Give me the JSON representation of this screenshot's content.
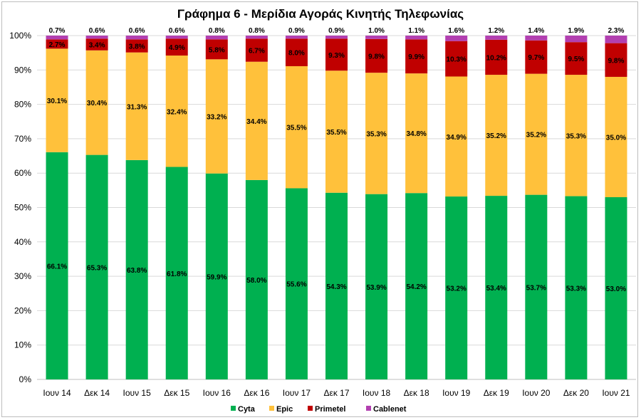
{
  "chart_data": {
    "type": "bar",
    "stacked": true,
    "title": "Γράφημα 6 - Μερίδια Αγοράς Κινητής Τηλεφωνίας",
    "xlabel": "",
    "ylabel": "",
    "ylim": [
      0,
      100
    ],
    "y_ticks": [
      "0%",
      "10%",
      "20%",
      "30%",
      "40%",
      "50%",
      "60%",
      "70%",
      "80%",
      "90%",
      "100%"
    ],
    "categories": [
      "Ιουν 14",
      "Δεκ 14",
      "Ιουν 15",
      "Δεκ 15",
      "Ιουν 16",
      "Δεκ 16",
      "Ιουν 17",
      "Δεκ 17",
      "Ιουν 18",
      "Δεκ 18",
      "Ιουν 19",
      "Δεκ 19",
      "Ιουν 20",
      "Δεκ 20",
      "Ιουν 21"
    ],
    "series": [
      {
        "name": "Cyta",
        "color": "#00b050",
        "values": [
          66.1,
          65.3,
          63.8,
          61.8,
          59.9,
          58.0,
          55.6,
          54.3,
          53.9,
          54.2,
          53.2,
          53.4,
          53.7,
          53.3,
          53.0
        ],
        "labels": [
          "66.1%",
          "65.3%",
          "63.8%",
          "61.8%",
          "59.9%",
          "58.0%",
          "55.6%",
          "54.3%",
          "53.9%",
          "54.2%",
          "53.2%",
          "53.4%",
          "53.7%",
          "53.3%",
          "53.0%"
        ]
      },
      {
        "name": "Epic",
        "color": "#ffc13b",
        "values": [
          30.1,
          30.4,
          31.3,
          32.4,
          33.2,
          34.4,
          35.5,
          35.5,
          35.3,
          34.8,
          34.9,
          35.2,
          35.2,
          35.3,
          35.0
        ],
        "labels": [
          "30.1%",
          "30.4%",
          "31.3%",
          "32.4%",
          "33.2%",
          "34.4%",
          "35.5%",
          "35.5%",
          "35.3%",
          "34.8%",
          "34.9%",
          "35.2%",
          "35.2%",
          "35.3%",
          "35.0%"
        ]
      },
      {
        "name": "Primetel",
        "color": "#c00000",
        "values": [
          2.7,
          3.4,
          3.8,
          4.9,
          5.8,
          6.7,
          8.0,
          9.3,
          9.8,
          9.9,
          10.3,
          10.2,
          9.7,
          9.5,
          9.8
        ],
        "labels": [
          "2.7%",
          "3.4%",
          "3.8%",
          "4.9%",
          "5.8%",
          "6.7%",
          "8.0%",
          "9.3%",
          "9.8%",
          "9.9%",
          "10.3%",
          "10.2%",
          "9.7%",
          "9.5%",
          "9.8%"
        ]
      },
      {
        "name": "Cablenet",
        "color": "#b23fb0",
        "values": [
          0.7,
          0.6,
          0.6,
          0.6,
          0.8,
          0.8,
          0.9,
          0.9,
          1.0,
          1.1,
          1.6,
          1.2,
          1.4,
          1.9,
          2.3
        ],
        "labels": [
          "0.7%",
          "0.6%",
          "0.6%",
          "0.6%",
          "0.8%",
          "0.8%",
          "0.9%",
          "0.9%",
          "1.0%",
          "1.1%",
          "1.6%",
          "1.2%",
          "1.4%",
          "1.9%",
          "2.3%"
        ]
      }
    ],
    "grid": true,
    "legend_position": "bottom"
  }
}
